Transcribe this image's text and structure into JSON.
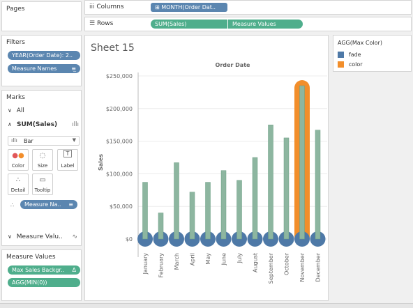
{
  "pages": {
    "title": "Pages"
  },
  "filters": {
    "title": "Filters",
    "items": [
      {
        "label": "YEAR(Order Date): 2..",
        "icon": ""
      },
      {
        "label": "Measure Names",
        "icon": "≡̲"
      }
    ]
  },
  "marks": {
    "title": "Marks",
    "all_label": "All",
    "sum_label": "SUM(Sales)",
    "mark_type": "Bar",
    "buttons": [
      {
        "label": "Color",
        "glyph": "⁘"
      },
      {
        "label": "Size",
        "glyph": "◌"
      },
      {
        "label": "Label",
        "glyph": "T"
      },
      {
        "label": "Detail",
        "glyph": "∴"
      },
      {
        "label": "Tooltip",
        "glyph": "▭"
      }
    ],
    "measure_pill": "Measure Na..",
    "measure_values_row": "Measure Valu.."
  },
  "measure_values": {
    "title": "Measure Values",
    "items": [
      "Max Sales Backgr..",
      "AGG(MIN(0))"
    ]
  },
  "shelves": {
    "columns_label": "Columns",
    "columns_pill": "MONTH(Order Dat..",
    "rows_label": "Rows",
    "rows_pills": [
      "SUM(Sales)",
      "Measure Values"
    ]
  },
  "sheet": {
    "title": "Sheet 15"
  },
  "legend": {
    "title": "AGG(Max Color)",
    "items": [
      {
        "label": "fade",
        "color": "#4e79a7"
      },
      {
        "label": "color",
        "color": "#f28e2b"
      }
    ]
  },
  "chart_data": {
    "type": "bar",
    "title": "Order Date",
    "ylabel": "Sales",
    "ylim": [
      0,
      250000
    ],
    "yticks": [
      "$0",
      "$50,000",
      "$100,000",
      "$150,000",
      "$200,000",
      "$250,000"
    ],
    "categories": [
      "January",
      "February",
      "March",
      "April",
      "May",
      "June",
      "July",
      "August",
      "September",
      "October",
      "November",
      "December"
    ],
    "series": [
      {
        "values": [
          87000,
          40000,
          117000,
          72000,
          87000,
          105000,
          90000,
          125000,
          175000,
          155000,
          235000,
          167000
        ]
      }
    ],
    "highlight_index": 10,
    "colors": {
      "bar": "#8db6a0",
      "bar_edge": "#6b9d83",
      "fade": "#4e79a7",
      "color": "#f28e2b",
      "grid": "#ececec"
    }
  }
}
